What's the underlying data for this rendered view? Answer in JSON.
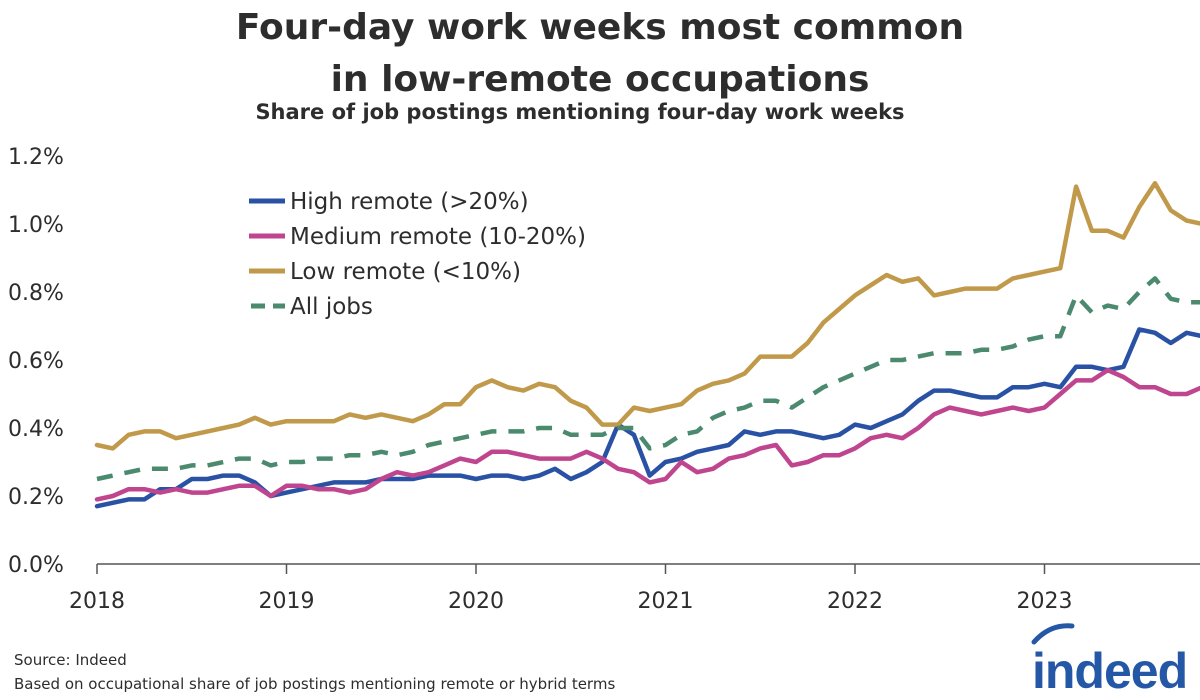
{
  "header": {
    "title_line1": "Four-day work weeks most common",
    "title_line2": "in low-remote occupations",
    "subtitle": "Share of job postings mentioning four-day work weeks"
  },
  "footer": {
    "source": "Source: Indeed",
    "note": "Based on occupational share of job postings mentioning remote or hybrid terms"
  },
  "logo": {
    "text": "indeed",
    "color": "#2557a7"
  },
  "chart_data": {
    "type": "line",
    "title": "Four-day work weeks most common in low-remote occupations",
    "subtitle": "Share of job postings mentioning four-day work weeks",
    "xlabel": "",
    "ylabel": "",
    "x_start": "2018-01",
    "x_frequency": "monthly",
    "x_ticks": [
      "2018",
      "2019",
      "2020",
      "2021",
      "2022",
      "2023"
    ],
    "ylim": [
      0,
      1.2
    ],
    "y_ticks": [
      "0.0%",
      "0.2%",
      "0.4%",
      "0.6%",
      "0.8%",
      "1.0%",
      "1.2%"
    ],
    "grid": false,
    "legend_position": "top-left",
    "series": [
      {
        "name": "High remote (>20%)",
        "color": "#2a52a4",
        "style": "solid",
        "values": [
          0.17,
          0.18,
          0.19,
          0.19,
          0.22,
          0.22,
          0.25,
          0.25,
          0.26,
          0.26,
          0.24,
          0.2,
          0.21,
          0.22,
          0.23,
          0.24,
          0.24,
          0.24,
          0.25,
          0.25,
          0.25,
          0.26,
          0.26,
          0.26,
          0.25,
          0.26,
          0.26,
          0.25,
          0.26,
          0.28,
          0.25,
          0.27,
          0.3,
          0.41,
          0.38,
          0.26,
          0.3,
          0.31,
          0.33,
          0.34,
          0.35,
          0.39,
          0.38,
          0.39,
          0.39,
          0.38,
          0.37,
          0.38,
          0.41,
          0.4,
          0.42,
          0.44,
          0.48,
          0.51,
          0.51,
          0.5,
          0.49,
          0.49,
          0.52,
          0.52,
          0.53,
          0.52,
          0.58,
          0.58,
          0.57,
          0.58,
          0.69,
          0.68,
          0.65,
          0.68,
          0.67
        ]
      },
      {
        "name": "Medium remote (10-20%)",
        "color": "#c0458f",
        "style": "solid",
        "values": [
          0.19,
          0.2,
          0.22,
          0.22,
          0.21,
          0.22,
          0.21,
          0.21,
          0.22,
          0.23,
          0.23,
          0.2,
          0.23,
          0.23,
          0.22,
          0.22,
          0.21,
          0.22,
          0.25,
          0.27,
          0.26,
          0.27,
          0.29,
          0.31,
          0.3,
          0.33,
          0.33,
          0.32,
          0.31,
          0.31,
          0.31,
          0.33,
          0.31,
          0.28,
          0.27,
          0.24,
          0.25,
          0.3,
          0.27,
          0.28,
          0.31,
          0.32,
          0.34,
          0.35,
          0.29,
          0.3,
          0.32,
          0.32,
          0.34,
          0.37,
          0.38,
          0.37,
          0.4,
          0.44,
          0.46,
          0.45,
          0.44,
          0.45,
          0.46,
          0.45,
          0.46,
          0.5,
          0.54,
          0.54,
          0.57,
          0.55,
          0.52,
          0.52,
          0.5,
          0.5,
          0.52
        ]
      },
      {
        "name": "Low remote (<10%)",
        "color": "#c09a4a",
        "style": "solid",
        "values": [
          0.35,
          0.34,
          0.38,
          0.39,
          0.39,
          0.37,
          0.38,
          0.39,
          0.4,
          0.41,
          0.43,
          0.41,
          0.42,
          0.42,
          0.42,
          0.42,
          0.44,
          0.43,
          0.44,
          0.43,
          0.42,
          0.44,
          0.47,
          0.47,
          0.52,
          0.54,
          0.52,
          0.51,
          0.53,
          0.52,
          0.48,
          0.46,
          0.41,
          0.41,
          0.46,
          0.45,
          0.46,
          0.47,
          0.51,
          0.53,
          0.54,
          0.56,
          0.61,
          0.61,
          0.61,
          0.65,
          0.71,
          0.75,
          0.79,
          0.82,
          0.85,
          0.83,
          0.84,
          0.79,
          0.8,
          0.81,
          0.81,
          0.81,
          0.84,
          0.85,
          0.86,
          0.87,
          1.11,
          0.98,
          0.98,
          0.96,
          1.05,
          1.12,
          1.04,
          1.01,
          1.0
        ]
      },
      {
        "name": "All jobs",
        "color": "#4b8a6e",
        "style": "dashed",
        "values": [
          0.25,
          0.26,
          0.27,
          0.28,
          0.28,
          0.28,
          0.29,
          0.29,
          0.3,
          0.31,
          0.31,
          0.29,
          0.3,
          0.3,
          0.31,
          0.31,
          0.32,
          0.32,
          0.33,
          0.32,
          0.33,
          0.35,
          0.36,
          0.37,
          0.38,
          0.39,
          0.39,
          0.39,
          0.4,
          0.4,
          0.38,
          0.38,
          0.38,
          0.4,
          0.4,
          0.34,
          0.35,
          0.38,
          0.39,
          0.43,
          0.45,
          0.46,
          0.48,
          0.48,
          0.46,
          0.49,
          0.52,
          0.54,
          0.56,
          0.58,
          0.6,
          0.6,
          0.61,
          0.62,
          0.62,
          0.62,
          0.63,
          0.63,
          0.64,
          0.66,
          0.67,
          0.67,
          0.79,
          0.74,
          0.76,
          0.75,
          0.8,
          0.84,
          0.78,
          0.77,
          0.77
        ]
      }
    ]
  }
}
